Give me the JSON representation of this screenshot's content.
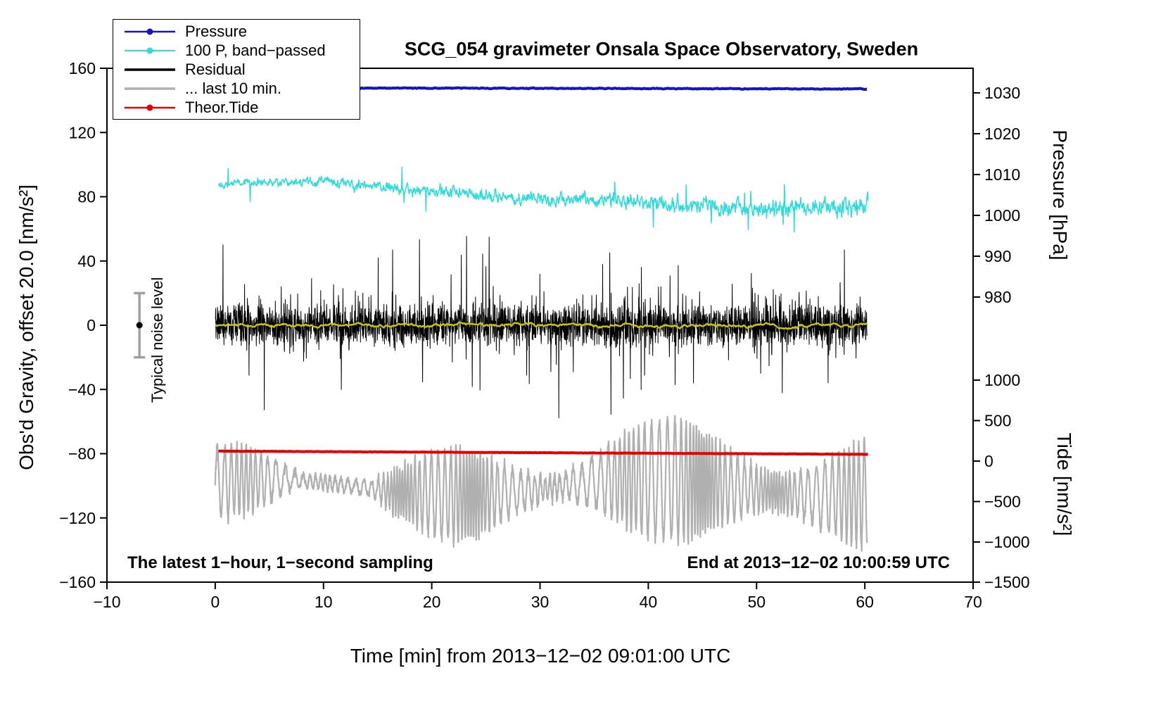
{
  "chart": {
    "title": "SCG_054 gravimeter Onsala Space Observatory, Sweden",
    "xlabel": "Time [min] from 2013−12−02 09:01:00 UTC",
    "ylabel_left": "Obs'd Gravity, offset 20.0 [nm/s²]",
    "ylabel_pressure": "Pressure [hPa]",
    "ylabel_tide": "Tide [nm/s²]",
    "annotations": {
      "sampling": "The latest 1−hour, 1−second sampling",
      "end_time": "End at 2013−12−02 10:00:59 UTC",
      "noise_label": "Typical noise level"
    },
    "legend": [
      {
        "id": "pressure",
        "label": "Pressure",
        "color": "#1414cc",
        "line_width": 2.5,
        "dot": true
      },
      {
        "id": "band_passed",
        "label": "100 P, band−passed",
        "color": "#30dbdb",
        "line_width": 2,
        "dot": true
      },
      {
        "id": "residual",
        "label": "Residual",
        "color": "#000000",
        "line_width": 3.5,
        "dot": false
      },
      {
        "id": "last_10_min",
        "label": "... last 10 min.",
        "color": "#b0b0b0",
        "line_width": 3.5,
        "dot": false
      },
      {
        "id": "theor_tide",
        "label": "Theor.Tide",
        "color": "#e60000",
        "line_width": 2.5,
        "dot": true
      }
    ]
  },
  "chart_data": {
    "type": "line",
    "x_axis": {
      "label": "Time [min] from 2013−12−02 09:01:00 UTC",
      "range": [
        -10,
        70
      ],
      "ticks": [
        -10,
        0,
        10,
        20,
        30,
        40,
        50,
        60,
        70
      ]
    },
    "y_axis_left": {
      "label": "Obs'd Gravity, offset 20.0 [nm/s²]",
      "range": [
        -160,
        160
      ],
      "ticks": [
        -160,
        -120,
        -80,
        -40,
        0,
        40,
        80,
        120,
        160
      ]
    },
    "y_axis_pressure": {
      "label": "Pressure [hPa]",
      "ticks": [
        1030,
        1020,
        1010,
        1000,
        990,
        980
      ],
      "gravity_of_1030_hpa": 144.7,
      "gravity_per_hpa": 2.543
    },
    "y_axis_tide": {
      "label": "Tide [nm/s²]",
      "ticks": [
        1000,
        500,
        0,
        -500,
        -1000,
        -1500
      ],
      "gravity_of_zero_tide": -84.6,
      "gravity_per_500": 25.2
    },
    "noise_marker": {
      "x": -7,
      "center_gravity": 0,
      "half_range_gravity": 20,
      "color": "#a0a0a0"
    },
    "series": [
      {
        "id": "pressure",
        "name": "Pressure",
        "color": "#1414cc",
        "width": 4,
        "x_start": 0,
        "x_end": 60.2,
        "gravity_start": 147.9,
        "gravity_end": 147.1,
        "value_hpa_start": 1031.2,
        "value_hpa_end": 1030.9,
        "noise_amp": 0.22,
        "points": 1200,
        "seed": 11
      },
      {
        "id": "band_passed",
        "name": "100 P, band−passed",
        "color": "#30dbdb",
        "width": 1.5,
        "baseline_points": [
          [
            0.3,
            88.5
          ],
          [
            5,
            89
          ],
          [
            10,
            89.5
          ],
          [
            14,
            87
          ],
          [
            18,
            84
          ],
          [
            22,
            82.5
          ],
          [
            26,
            80
          ],
          [
            30,
            78.5
          ],
          [
            34,
            79
          ],
          [
            38,
            77.5
          ],
          [
            42,
            75.5
          ],
          [
            46,
            74
          ],
          [
            50,
            72.5
          ],
          [
            54,
            73.5
          ],
          [
            58,
            72.5
          ],
          [
            60.3,
            76
          ]
        ],
        "noise_amp_start": 2.4,
        "noise_amp_end": 6.2,
        "spike_chance": 0.01,
        "spike_extra": 11,
        "points": 1600,
        "seed": 22
      },
      {
        "id": "residual",
        "name": "Residual",
        "color": "#000000",
        "width": 1,
        "x_start": 0,
        "x_end": 60.2,
        "baseline": 0,
        "noise_amp": 14,
        "spike_chance": 0.014,
        "spike_amp_min": 24,
        "spike_amp_max": 52,
        "points": 3200,
        "seed": 33
      },
      {
        "id": "residual_smooth",
        "name": "Residual smoothed",
        "color": "#c8c800",
        "width": 2.4,
        "x_start": 0,
        "x_end": 60.2,
        "baseline": 0,
        "noise_amp": 1.8,
        "points": 700,
        "seed": 44
      },
      {
        "id": "last_10_min",
        "name": "... last 10 min.",
        "color": "#b0b0b0",
        "width": 2.2,
        "x_start": 0,
        "x_end": 60.2,
        "baseline": -101,
        "osc_period_min": 0.55,
        "amp_base": 17,
        "amp_mod": 13,
        "points": 2600,
        "seed": 66
      },
      {
        "id": "theor_tide",
        "name": "Theor.Tide",
        "color": "#e60000",
        "width": 4,
        "x_start": 0.3,
        "x_end": 60.3,
        "gravity_start": -78.4,
        "gravity_end": -80.4,
        "tide_value_start": 120,
        "tide_value_end": 80,
        "noise_amp": 0.1,
        "points": 500,
        "seed": 55
      }
    ]
  }
}
